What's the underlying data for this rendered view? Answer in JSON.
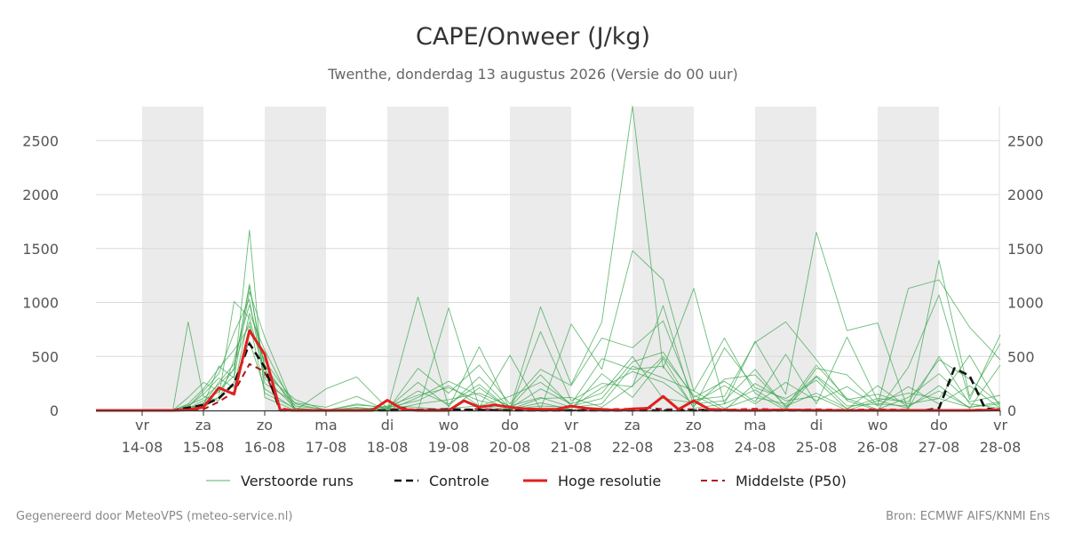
{
  "chart_data": {
    "type": "line",
    "title": "CAPE/Onweer (J/kg)",
    "subtitle": "Twenthe, donderdag 13 augustus 2026 (Versie do 00 uur)",
    "ylim": [
      0,
      2820
    ],
    "yticks": [
      0,
      500,
      1000,
      1500,
      2000,
      2500
    ],
    "xlim": [
      -1.55,
      13.25
    ],
    "x_ticks": [
      {
        "x": 0,
        "day": "vr",
        "date": "14-08"
      },
      {
        "x": 1,
        "day": "za",
        "date": "15-08"
      },
      {
        "x": 2,
        "day": "zo",
        "date": "16-08"
      },
      {
        "x": 3,
        "day": "ma",
        "date": "17-08"
      },
      {
        "x": 4,
        "day": "di",
        "date": "18-08"
      },
      {
        "x": 5,
        "day": "wo",
        "date": "19-08"
      },
      {
        "x": 6,
        "day": "do",
        "date": "20-08"
      },
      {
        "x": 7,
        "day": "vr",
        "date": "21-08"
      },
      {
        "x": 8,
        "day": "za",
        "date": "22-08"
      },
      {
        "x": 9,
        "day": "zo",
        "date": "23-08"
      },
      {
        "x": 10,
        "day": "ma",
        "date": "24-08"
      },
      {
        "x": 11,
        "day": "di",
        "date": "25-08"
      },
      {
        "x": 12,
        "day": "wo",
        "date": "26-08"
      },
      {
        "x": 13,
        "day": "do",
        "date": "27-08"
      },
      {
        "x": 14,
        "day": "vr",
        "date": "28-08"
      }
    ],
    "night_bands": [
      [
        0,
        1
      ],
      [
        2,
        3
      ],
      [
        4,
        5
      ],
      [
        6,
        7
      ],
      [
        8,
        9
      ],
      [
        10,
        11
      ],
      [
        12,
        13
      ]
    ],
    "grid": true,
    "legend_position": "bottom",
    "legend": [
      {
        "label": "Verstoorde runs",
        "color": "#55b066",
        "style": "thin"
      },
      {
        "label": "Controle",
        "color": "#111111",
        "style": "dashed"
      },
      {
        "label": "Hoge resolutie",
        "color": "#e02020",
        "style": "thick"
      },
      {
        "label": "Middelste (P50)",
        "color": "#b01818",
        "style": "dashed"
      }
    ],
    "series": [
      {
        "name": "Hoge resolutie",
        "x": [
          -0.75,
          -0.5,
          -0.25,
          0,
          0.25,
          0.5,
          0.75,
          1,
          1.25,
          1.5,
          1.75,
          2,
          2.25,
          2.5,
          2.75,
          3,
          3.25,
          3.5,
          3.75,
          4,
          4.25,
          4.5,
          4.75,
          5,
          5.25,
          5.5,
          5.75,
          6,
          6.25,
          6.5,
          6.75,
          7,
          7.25,
          7.5,
          7.75,
          8,
          8.25,
          8.5,
          8.75,
          9,
          9.25,
          9.5,
          9.75,
          10,
          10.5,
          11,
          11.5,
          12,
          12.5,
          13,
          13.5,
          14
        ],
        "values": [
          0,
          0,
          0,
          0,
          0,
          0,
          5,
          30,
          210,
          150,
          740,
          520,
          5,
          0,
          0,
          0,
          0,
          0,
          0,
          95,
          10,
          0,
          0,
          0,
          90,
          30,
          50,
          30,
          15,
          10,
          10,
          40,
          20,
          10,
          0,
          15,
          20,
          130,
          10,
          90,
          10,
          5,
          0,
          0,
          5,
          0,
          0,
          0,
          0,
          0,
          0,
          5
        ]
      },
      {
        "name": "Controle",
        "x": [
          -0.75,
          -0.25,
          0,
          0.5,
          1,
          1.25,
          1.5,
          1.75,
          2,
          2.25,
          2.5,
          3,
          4,
          5,
          6,
          7,
          8,
          9,
          10,
          11,
          12,
          12.75,
          13,
          13.25,
          13.5,
          13.75,
          14
        ],
        "values": [
          0,
          0,
          0,
          0,
          50,
          110,
          250,
          620,
          400,
          0,
          0,
          0,
          0,
          10,
          0,
          0,
          0,
          0,
          0,
          0,
          0,
          0,
          20,
          390,
          320,
          20,
          0
        ]
      },
      {
        "name": "Middelste (P50)",
        "x": [
          -0.75,
          0,
          0.5,
          1,
          1.25,
          1.5,
          1.75,
          2,
          2.25,
          2.5,
          3,
          4,
          4.25,
          4.5,
          5,
          5.5,
          6,
          6.5,
          7,
          7.5,
          8,
          8.25,
          8.5,
          9,
          9.5,
          10,
          10.5,
          11,
          11.5,
          12,
          12.5,
          13,
          13.5,
          14
        ],
        "values": [
          0,
          0,
          0,
          10,
          80,
          170,
          430,
          360,
          20,
          0,
          0,
          0,
          25,
          0,
          0,
          15,
          0,
          10,
          0,
          10,
          15,
          25,
          10,
          10,
          5,
          15,
          5,
          10,
          5,
          10,
          5,
          0,
          5,
          10
        ]
      }
    ],
    "ensemble_series": [
      {
        "x": [
          -0.75,
          0.5,
          0.75,
          1,
          1.25,
          1.5,
          1.75,
          2,
          2.5,
          3,
          3.5,
          4,
          4.5,
          5,
          5.5,
          6,
          6.5,
          7,
          7.5,
          8,
          8.5,
          9,
          9.5,
          10,
          10.5,
          11,
          11.5,
          12,
          12.5,
          13,
          13.5,
          14
        ],
        "values": [
          0,
          0,
          50,
          110,
          240,
          380,
          1170,
          300,
          20,
          0,
          10,
          20,
          0,
          20,
          40,
          10,
          40,
          30,
          60,
          410,
          300,
          180,
          20,
          120,
          60,
          320,
          100,
          150,
          60,
          110,
          30,
          80
        ]
      },
      {
        "x": [
          -0.75,
          0.5,
          0.75,
          1,
          1.25,
          1.5,
          1.75,
          2,
          2.5,
          3,
          3.5,
          4,
          4.5,
          5,
          5.5,
          6,
          6.5,
          7,
          7.5,
          8,
          8.5,
          9,
          9.5,
          10,
          10.5,
          11,
          11.5,
          12,
          12.5,
          13,
          13.5,
          14
        ],
        "values": [
          0,
          0,
          120,
          260,
          180,
          320,
          1670,
          120,
          0,
          0,
          0,
          40,
          30,
          0,
          210,
          10,
          110,
          120,
          30,
          230,
          500,
          140,
          0,
          250,
          90,
          130,
          0,
          90,
          20,
          500,
          60,
          20
        ]
      },
      {
        "x": [
          -0.75,
          0.5,
          0.75,
          1,
          1.25,
          1.5,
          1.75,
          2,
          2.5,
          3,
          3.5,
          4,
          4.5,
          5,
          5.5,
          6,
          6.5,
          7,
          7.5,
          8,
          8.5,
          9,
          9.5,
          10,
          10.5,
          11,
          11.5,
          12,
          12.5,
          13,
          13.5,
          14
        ],
        "values": [
          0,
          0,
          820,
          130,
          90,
          470,
          980,
          420,
          0,
          0,
          30,
          0,
          1050,
          30,
          590,
          10,
          960,
          240,
          820,
          2820,
          390,
          1130,
          60,
          640,
          150,
          1650,
          740,
          810,
          0,
          1390,
          130,
          620
        ]
      },
      {
        "x": [
          -0.75,
          0.5,
          0.75,
          1,
          1.25,
          1.5,
          1.75,
          2,
          2.5,
          3,
          3.5,
          4,
          4.5,
          5,
          5.5,
          6,
          6.5,
          7,
          7.5,
          8,
          8.5,
          9,
          9.5,
          10,
          10.5,
          11,
          11.5,
          12,
          12.5,
          13,
          13.5,
          14
        ],
        "values": [
          0,
          0,
          30,
          50,
          410,
          300,
          1100,
          680,
          0,
          200,
          310,
          20,
          0,
          950,
          30,
          510,
          10,
          800,
          380,
          1480,
          1210,
          180,
          670,
          160,
          0,
          390,
          330,
          50,
          1130,
          1210,
          770,
          470
        ]
      },
      {
        "x": [
          -0.75,
          0.5,
          0.75,
          1,
          1.25,
          1.5,
          1.75,
          2,
          2.5,
          3,
          3.5,
          4,
          4.5,
          5,
          5.5,
          6,
          6.5,
          7,
          7.5,
          8,
          8.5,
          9,
          9.5,
          10,
          10.5,
          11,
          11.5,
          12,
          12.5,
          13,
          13.5,
          14
        ],
        "values": [
          0,
          0,
          10,
          70,
          120,
          1010,
          860,
          330,
          100,
          0,
          0,
          0,
          390,
          160,
          420,
          60,
          380,
          230,
          670,
          580,
          830,
          100,
          130,
          630,
          820,
          470,
          90,
          0,
          400,
          1070,
          100,
          700
        ]
      },
      {
        "x": [
          -0.75,
          0.5,
          0.75,
          1,
          1.25,
          1.5,
          1.75,
          2,
          2.5,
          3,
          3.5,
          4,
          4.5,
          5,
          5.5,
          6,
          6.5,
          7,
          7.5,
          8,
          8.5,
          9,
          9.5,
          10,
          10.5,
          11,
          11.5,
          12,
          12.5,
          13,
          13.5,
          14
        ],
        "values": [
          0,
          0,
          30,
          180,
          340,
          720,
          1030,
          250,
          70,
          30,
          130,
          0,
          120,
          270,
          140,
          0,
          730,
          90,
          250,
          220,
          970,
          40,
          290,
          330,
          40,
          160,
          20,
          110,
          80,
          470,
          290,
          60
        ]
      },
      {
        "x": [
          -0.75,
          0.5,
          0.75,
          1,
          1.25,
          1.5,
          1.75,
          2,
          2.5,
          3,
          3.5,
          4,
          4.5,
          5,
          5.5,
          6,
          6.5,
          7,
          7.5,
          8,
          8.5,
          9,
          9.5,
          10,
          10.5,
          11,
          11.5,
          12,
          12.5,
          13,
          13.5,
          14
        ],
        "values": [
          0,
          0,
          10,
          60,
          260,
          430,
          820,
          160,
          20,
          0,
          60,
          20,
          260,
          40,
          310,
          20,
          200,
          60,
          480,
          380,
          410,
          30,
          580,
          210,
          110,
          280,
          10,
          230,
          30,
          230,
          20,
          420
        ]
      },
      {
        "x": [
          -0.75,
          0.5,
          0.75,
          1,
          1.25,
          1.5,
          1.75,
          2,
          2.5,
          3,
          3.5,
          4,
          4.5,
          5,
          5.5,
          6,
          6.5,
          7,
          7.5,
          8,
          8.5,
          9,
          9.5,
          10,
          10.5,
          11,
          11.5,
          12,
          12.5,
          13,
          13.5,
          14
        ],
        "values": [
          0,
          0,
          40,
          150,
          300,
          210,
          900,
          560,
          0,
          0,
          0,
          40,
          140,
          210,
          90,
          30,
          330,
          40,
          110,
          450,
          540,
          120,
          270,
          80,
          520,
          60,
          680,
          90,
          160,
          110,
          510,
          30
        ]
      },
      {
        "x": [
          -0.75,
          0.5,
          0.75,
          1,
          1.25,
          1.5,
          1.75,
          2,
          2.5,
          3,
          3.5,
          4,
          4.5,
          5,
          5.5,
          6,
          6.5,
          7,
          7.5,
          8,
          8.5,
          9,
          9.5,
          10,
          10.5,
          11,
          11.5,
          12,
          12.5,
          13,
          13.5,
          14
        ],
        "values": [
          0,
          0,
          20,
          90,
          170,
          390,
          1150,
          380,
          40,
          10,
          10,
          0,
          60,
          100,
          160,
          40,
          120,
          30,
          210,
          360,
          260,
          60,
          90,
          380,
          30,
          420,
          110,
          10,
          120,
          340,
          80,
          140
        ]
      },
      {
        "x": [
          -0.75,
          0.5,
          0.75,
          1,
          1.25,
          1.5,
          1.75,
          2,
          2.5,
          3,
          3.5,
          4,
          4.5,
          5,
          5.5,
          6,
          6.5,
          7,
          7.5,
          8,
          8.5,
          9,
          9.5,
          10,
          10.5,
          11,
          11.5,
          12,
          12.5,
          13,
          13.5,
          14
        ],
        "values": [
          0,
          0,
          0,
          30,
          120,
          260,
          640,
          200,
          10,
          0,
          20,
          10,
          180,
          60,
          240,
          10,
          70,
          10,
          340,
          120,
          480,
          20,
          60,
          190,
          20,
          310,
          40,
          60,
          40,
          180,
          30,
          60
        ]
      },
      {
        "x": [
          -0.75,
          0.5,
          0.75,
          1,
          1.25,
          1.5,
          1.75,
          2,
          2.5,
          3,
          3.5,
          4,
          4.5,
          5,
          5.5,
          6,
          6.5,
          7,
          7.5,
          8,
          8.5,
          9,
          9.5,
          10,
          10.5,
          11,
          11.5,
          12,
          12.5,
          13,
          13.5,
          14
        ],
        "values": [
          0,
          0,
          60,
          200,
          390,
          560,
          780,
          460,
          60,
          0,
          50,
          30,
          90,
          230,
          40,
          130,
          260,
          60,
          160,
          500,
          110,
          70,
          230,
          60,
          260,
          90,
          220,
          40,
          220,
          60,
          230,
          20
        ]
      }
    ]
  },
  "footer": {
    "left": "Gegenereerd door MeteoVPS (meteo-service.nl)",
    "right": "Bron: ECMWF AIFS/KNMI Ens"
  }
}
